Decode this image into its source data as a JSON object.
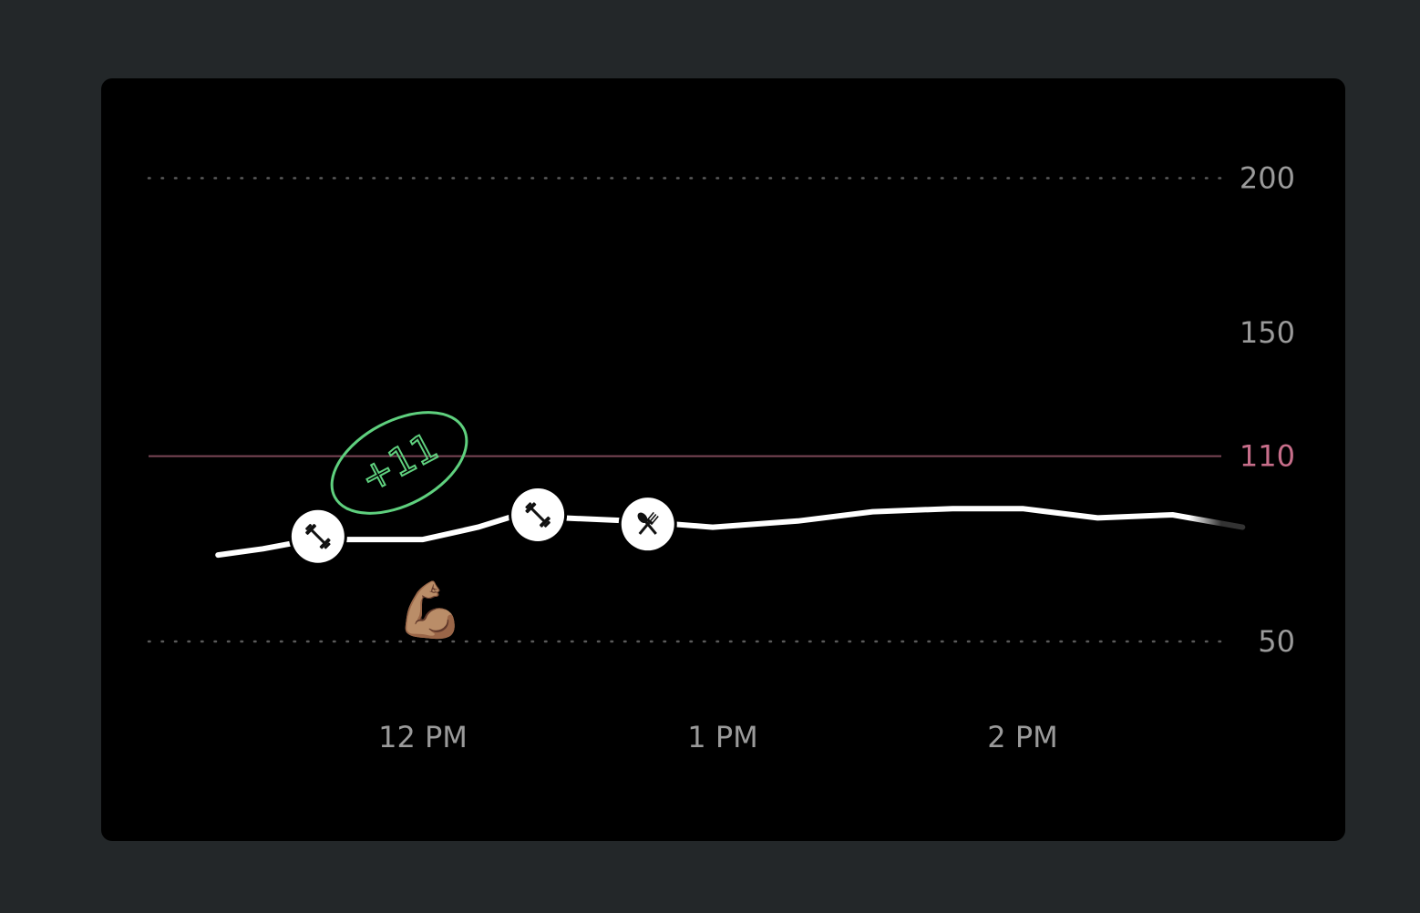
{
  "chart_data": {
    "type": "line",
    "x_unit": "time of day",
    "x_ticks": [
      "12 PM",
      "1 PM",
      "2 PM"
    ],
    "y_ticks": [
      50,
      150,
      200
    ],
    "ylim": [
      50,
      200
    ],
    "target": {
      "value": 110,
      "label": "110",
      "color": "#c76e8a"
    },
    "series": [
      {
        "x": [
          "11:19",
          "11:28",
          "11:38",
          "11:49",
          "12:00",
          "12:11",
          "12:19",
          "12:28",
          "12:42",
          "12:58",
          "13:15",
          "13:30",
          "13:46",
          "14:00",
          "14:15",
          "14:30",
          "14:44"
        ],
        "values": [
          78,
          80,
          83,
          83,
          83,
          87,
          91,
          90,
          89,
          87,
          89,
          92,
          93,
          93,
          90,
          91,
          87
        ]
      }
    ],
    "events": [
      {
        "time": "11:39",
        "value": 84,
        "icon": "dumbbell-icon"
      },
      {
        "time": "12:23",
        "value": 91,
        "icon": "dumbbell-icon"
      },
      {
        "time": "12:45",
        "value": 88,
        "icon": "fork-spoon-icon"
      }
    ],
    "annotation": {
      "text": "+11",
      "color": "#5fd07e"
    },
    "emoji": "💪🏽"
  },
  "colors": {
    "background": "#232729",
    "card": "#000000",
    "line": "#ffffff",
    "grid_dots": "#5a5a5a",
    "tick_text": "#9a9a9a"
  }
}
